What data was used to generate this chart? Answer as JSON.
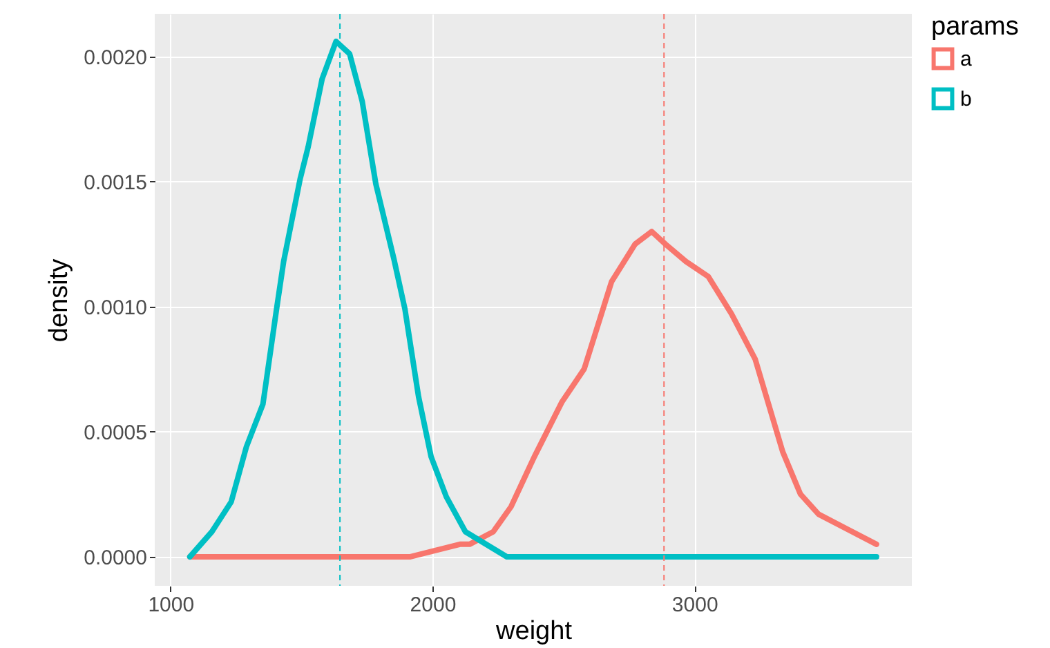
{
  "chart_data": {
    "type": "line",
    "xlabel": "weight",
    "ylabel": "density",
    "legend_title": "params",
    "xlim": [
      940,
      3830
    ],
    "xticks": [
      1000,
      2000,
      3000
    ],
    "ylim": [
      -0.000116,
      0.00217
    ],
    "yticks": [
      {
        "value": 0,
        "label": "0.0000"
      },
      {
        "value": 0.0005,
        "label": "0.0005"
      },
      {
        "value": 0.001,
        "label": "0.0010"
      },
      {
        "value": 0.0015,
        "label": "0.0015"
      },
      {
        "value": 0.002,
        "label": "0.0020"
      }
    ],
    "grid": true,
    "legend": "right",
    "line_style": "solid",
    "marker": "none",
    "series": [
      {
        "name": "a",
        "color": "#f8766d",
        "x": [
          1074,
          1500,
          1916,
          2105,
          2142,
          2232,
          2300,
          2389,
          2495,
          2579,
          2684,
          2774,
          2837,
          2889,
          2968,
          3053,
          3142,
          3232,
          3337,
          3405,
          3474,
          3695
        ],
        "values": [
          0,
          0,
          0,
          5e-05,
          5e-05,
          0.0001,
          0.0002,
          0.0004,
          0.00062,
          0.00075,
          0.0011,
          0.00125,
          0.0013,
          0.00125,
          0.00118,
          0.00112,
          0.00097,
          0.00079,
          0.00042,
          0.00025,
          0.00017,
          5e-05
        ]
      },
      {
        "name": "b",
        "color": "#00bfc4",
        "x": [
          1074,
          1158,
          1232,
          1290,
          1353,
          1405,
          1432,
          1495,
          1526,
          1579,
          1632,
          1684,
          1732,
          1784,
          1853,
          1895,
          1947,
          1995,
          2053,
          2126,
          2284,
          2442,
          3000,
          3695
        ],
        "values": [
          0,
          0.0001,
          0.00022,
          0.00044,
          0.00061,
          0.00099,
          0.00118,
          0.00151,
          0.00164,
          0.00191,
          0.00206,
          0.00201,
          0.00182,
          0.00149,
          0.00119,
          0.00099,
          0.00064,
          0.0004,
          0.00024,
          0.0001,
          0,
          0,
          0,
          0
        ]
      }
    ],
    "ref_lines": [
      {
        "axis": "x",
        "value": 2884,
        "color": "#f8766d",
        "line_style": "dashed"
      },
      {
        "axis": "x",
        "value": 1647,
        "color": "#00bfc4",
        "line_style": "dashed"
      }
    ]
  }
}
